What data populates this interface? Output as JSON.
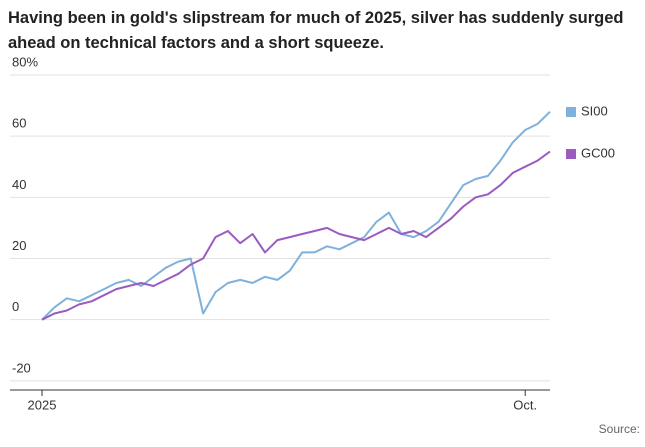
{
  "chart_data": {
    "type": "line",
    "title": "Having been in gold's slipstream for much of 2025, silver has suddenly surged ahead on technical factors and a short squeeze.",
    "source": "Source:",
    "categories": [
      "2025",
      null,
      null,
      null,
      null,
      null,
      null,
      null,
      null,
      null,
      null,
      null,
      null,
      null,
      null,
      null,
      null,
      null,
      null,
      null,
      null,
      null,
      null,
      null,
      null,
      null,
      null,
      null,
      null,
      null,
      null,
      null,
      null,
      null,
      null,
      null,
      null,
      null,
      null,
      "Oct.",
      null,
      null
    ],
    "series": [
      {
        "name": "SI00",
        "color": "#7fb1dc",
        "values": [
          0,
          4,
          7,
          6,
          8,
          10,
          12,
          13,
          11,
          14,
          17,
          19,
          20,
          2,
          9,
          12,
          13,
          12,
          14,
          13,
          16,
          22,
          22,
          24,
          23,
          25,
          27,
          32,
          35,
          28,
          27,
          29,
          32,
          38,
          44,
          46,
          47,
          52,
          58,
          62,
          64,
          68
        ]
      },
      {
        "name": "GC00",
        "color": "#9b5bbf",
        "values": [
          0,
          2,
          3,
          5,
          6,
          8,
          10,
          11,
          12,
          11,
          13,
          15,
          18,
          20,
          27,
          29,
          25,
          28,
          22,
          26,
          27,
          28,
          29,
          30,
          28,
          27,
          26,
          28,
          30,
          28,
          29,
          27,
          30,
          33,
          37,
          40,
          41,
          44,
          48,
          50,
          52,
          55
        ]
      }
    ],
    "ylim": [
      -23,
      80
    ],
    "yticks": [
      -20,
      0,
      20,
      40,
      {
        "value": 60,
        "label": "60"
      },
      {
        "value": 80,
        "label": "80%"
      }
    ],
    "grid": true,
    "legend": "right"
  }
}
